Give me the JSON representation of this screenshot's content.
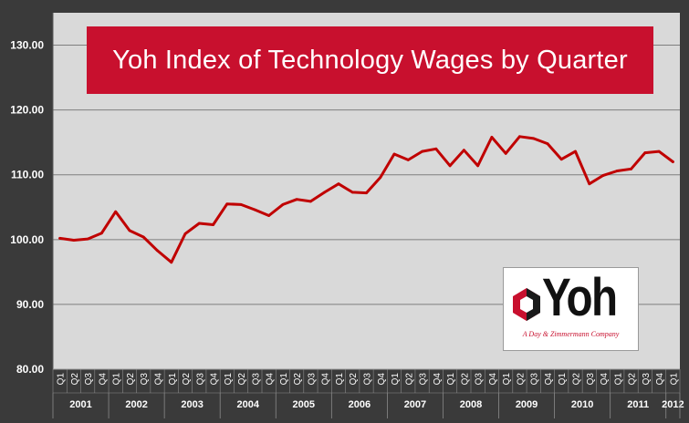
{
  "chart_data": {
    "type": "line",
    "title": "Yoh Index of Technology Wages by Quarter",
    "xlabel": "",
    "ylabel": "",
    "ylim": [
      80,
      135
    ],
    "y_ticks": [
      "80.00",
      "90.00",
      "100.00",
      "110.00",
      "120.00",
      "130.00"
    ],
    "grid": "horizontal",
    "quarters": [
      "Q1",
      "Q2",
      "Q3",
      "Q4",
      "Q1",
      "Q2",
      "Q3",
      "Q4",
      "Q1",
      "Q2",
      "Q3",
      "Q4",
      "Q1",
      "Q2",
      "Q3",
      "Q4",
      "Q1",
      "Q2",
      "Q3",
      "Q4",
      "Q1",
      "Q2",
      "Q3",
      "Q4",
      "Q1",
      "Q2",
      "Q3",
      "Q4",
      "Q1",
      "Q2",
      "Q3",
      "Q4",
      "Q1",
      "Q2",
      "Q3",
      "Q4",
      "Q1",
      "Q2",
      "Q3",
      "Q4",
      "Q1",
      "Q2",
      "Q3",
      "Q4",
      "Q1"
    ],
    "years": [
      "2001",
      "2002",
      "2003",
      "2004",
      "2005",
      "2006",
      "2007",
      "2008",
      "2009",
      "2010",
      "2011",
      "2012"
    ],
    "series": [
      {
        "values": [
          100.2,
          99.9,
          100.1,
          101.0,
          104.3,
          101.4,
          100.4,
          98.3,
          96.5,
          100.9,
          102.5,
          102.3,
          105.5,
          105.4,
          104.6,
          103.7,
          105.4,
          106.2,
          105.9,
          107.3,
          108.6,
          107.3,
          107.2,
          109.6,
          113.2,
          112.3,
          113.6,
          114.0,
          111.4,
          113.8,
          111.4,
          115.8,
          113.3,
          115.9,
          115.6,
          114.8,
          112.4,
          113.6,
          108.6,
          109.9,
          110.6,
          110.9,
          113.4,
          113.6,
          112.0
        ]
      }
    ]
  },
  "logo": {
    "text": "Yoh",
    "tagline": "A Day & Zimmermann Company"
  },
  "colors": {
    "background": "#3a3a3a",
    "plot_area": "#d9d9d9",
    "line": "#c00000",
    "title_box": "#c8102e",
    "title_text": "#ffffff"
  }
}
